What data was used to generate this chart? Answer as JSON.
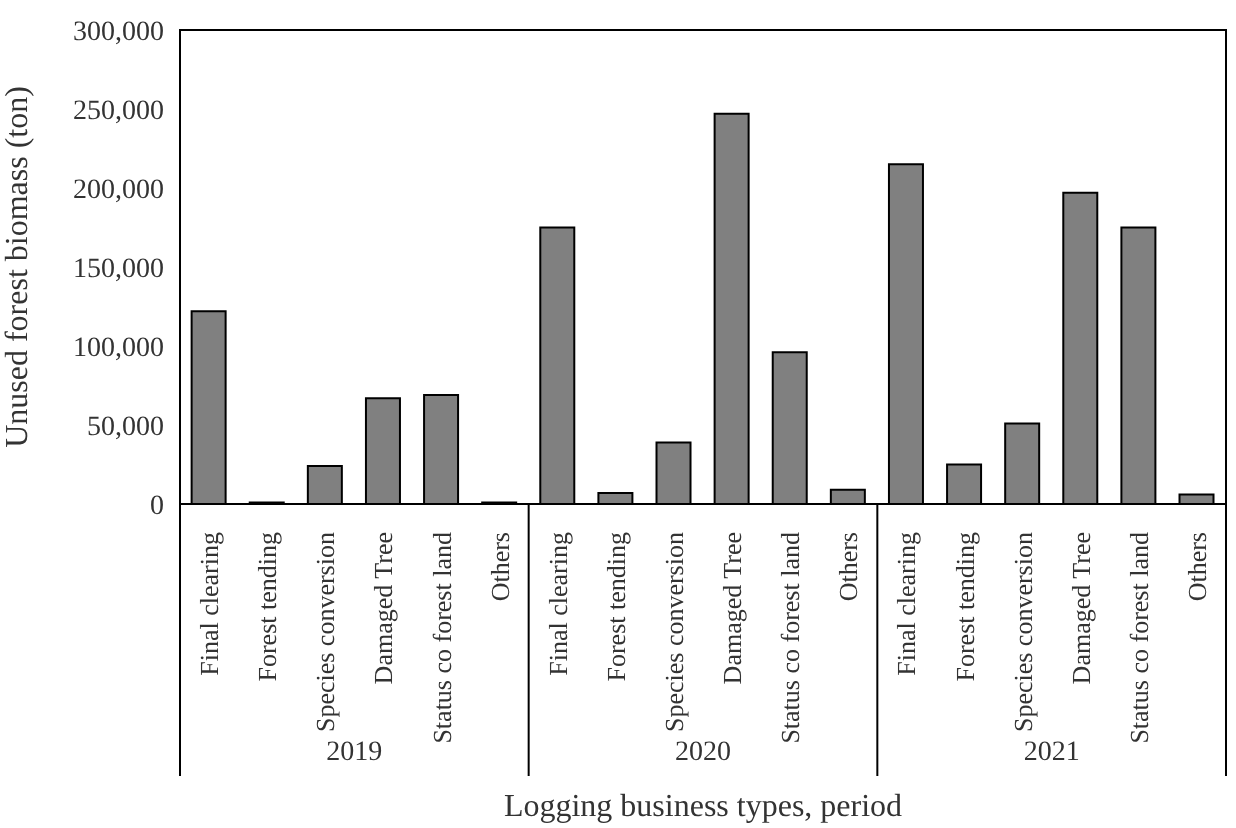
{
  "chart_data": {
    "type": "bar",
    "xlabel": "Logging business types, period",
    "ylabel": "Unused forest biomass (ton)",
    "categories": [
      "Final clearing",
      "Forest tending",
      "Species conversion",
      "Damaged Tree",
      "Status co forest land",
      "Others",
      "Final clearing",
      "Forest tending",
      "Species conversion",
      "Damaged Tree",
      "Status co forest land",
      "Others",
      "Final clearing",
      "Forest tending",
      "Species conversion",
      "Damaged Tree",
      "Status co forest land",
      "Others"
    ],
    "values": [
      122000,
      1000,
      24000,
      67000,
      69000,
      1000,
      175000,
      7000,
      39000,
      247000,
      96000,
      9000,
      215000,
      25000,
      51000,
      197000,
      175000,
      6000
    ],
    "color": "#808080",
    "ylim": [
      0,
      300000
    ],
    "yticks": [
      0,
      {
        "value": 50000,
        "label": "50,000"
      },
      {
        "value": 100000,
        "label": "100,000"
      },
      {
        "value": 150000,
        "label": "150,000"
      },
      {
        "value": 200000,
        "label": "200,000"
      },
      {
        "value": 250000,
        "label": "250,000"
      },
      {
        "value": 300000,
        "label": "300,000"
      }
    ],
    "annotations": [
      "2019",
      "2020",
      "2021"
    ],
    "grid": false,
    "legend": false
  }
}
